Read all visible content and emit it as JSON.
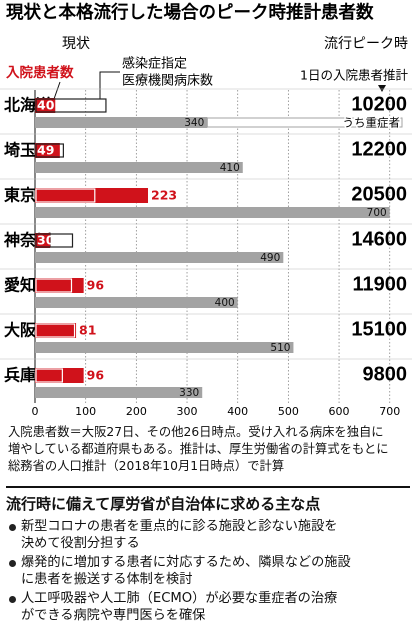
{
  "chart_data": {
    "type": "bar",
    "title": "現状と本格流行した場合のピーク時推計患者数",
    "current_header": "現状",
    "peak_header": "流行ピーク時",
    "peak_label": "1日の入院患者推計",
    "categories": [
      "北海道",
      "埼玉",
      "東京",
      "神奈川",
      "愛知",
      "大阪",
      "兵庫"
    ],
    "series": [
      {
        "name": "入院患者数",
        "color": "#d0121b",
        "values": [
          40,
          49,
          223,
          30,
          96,
          81,
          96
        ]
      },
      {
        "name": [
          "感染症指定",
          "医療機関病床数"
        ],
        "color": "#222222",
        "values": [
          140,
          56,
          118,
          74,
          72,
          78,
          54
        ]
      },
      {
        "name": "うち重症者",
        "color": "#a3a3a3",
        "values": [
          340,
          410,
          700,
          490,
          400,
          510,
          330
        ]
      },
      {
        "name": "1日の入院患者推計",
        "values": [
          10200,
          12200,
          20500,
          14600,
          11900,
          15100,
          9800
        ]
      }
    ],
    "xlim": [
      0,
      740
    ],
    "xticks": [
      0,
      100,
      200,
      300,
      400,
      500,
      600,
      700
    ],
    "grid": true
  },
  "notes": [
    "入院患者数＝大阪27日、その他26日時点。受け入れる病床を独自に",
    "増やしている都道府県もある。推計は、厚生労働省の計算式をもとに",
    "総務省の人口推計（2018年10月1日時点）で計算"
  ],
  "measures": {
    "title": "流行時に備えて厚労省が自治体に求める主な点",
    "items": [
      [
        "新型コロナの患者を重点的に診る施設と診ない施設を",
        "決めて役割分担する"
      ],
      [
        "爆発的に増加する患者に対応するため、隣県などの施設",
        "に患者を搬送する体制を検討"
      ],
      [
        "人工呼吸器や人工肺（ECMO）が必要な重症者の治療",
        "ができる病院や専門医らを確保"
      ]
    ]
  }
}
